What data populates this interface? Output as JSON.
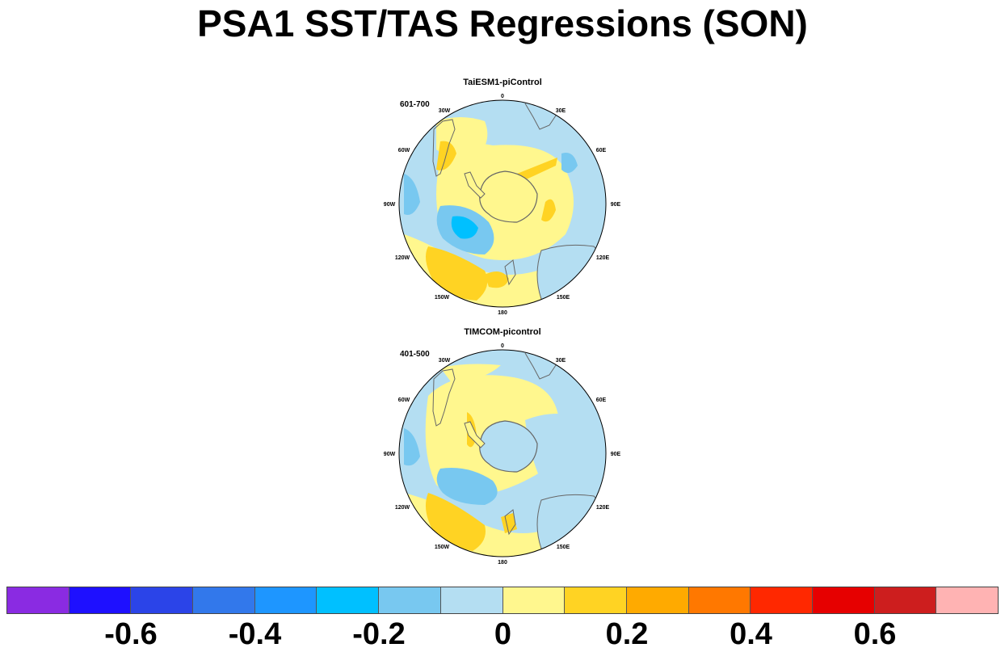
{
  "title": "PSA1 SST/TAS Regressions (SON)",
  "panels": [
    {
      "title": "TaiESM1-piControl",
      "period": "601-700",
      "lon_labels": [
        "0",
        "30E",
        "60E",
        "90E",
        "120E",
        "150E",
        "180",
        "150W",
        "120W",
        "90W",
        "60W",
        "30W"
      ]
    },
    {
      "title": "TIMCOM-picontrol",
      "period": "401-500",
      "lon_labels": [
        "0",
        "30E",
        "60E",
        "90E",
        "120E",
        "150E",
        "180",
        "150W",
        "120W",
        "90W",
        "60W",
        "30W"
      ]
    }
  ],
  "colorbar": {
    "colors": [
      "#8a2be2",
      "#1e10ff",
      "#2b44e8",
      "#3278eb",
      "#1e96ff",
      "#00c0ff",
      "#78c8f0",
      "#b4def2",
      "#fff78e",
      "#ffd323",
      "#ffaa00",
      "#ff7800",
      "#ff2800",
      "#e60000",
      "#cd1e1e",
      "#ffb3b3"
    ],
    "tick_labels": [
      "-0.6",
      "-0.4",
      "-0.2",
      "0",
      "0.2",
      "0.4",
      "0.6"
    ]
  },
  "palette": {
    "light_blue": "#b4def2",
    "mid_blue": "#78c8f0",
    "cyan": "#00c0ff",
    "blue": "#1e96ff",
    "light_yellow": "#fff78e",
    "yellow": "#ffd323",
    "orange": "#ffaa00",
    "coast": "#666666"
  }
}
